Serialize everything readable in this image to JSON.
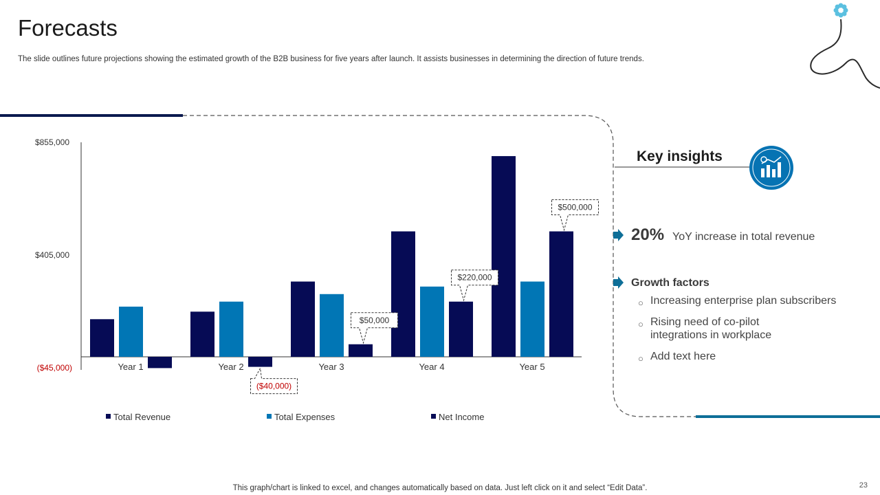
{
  "page": {
    "title": "Forecasts",
    "subtitle": "The slide outlines future projections showing the estimated growth of the B2B business for five years after launch. It assists businesses in determining the direction of future trends.",
    "footer_note": "This graph/chart is linked to excel, and changes automatically based on data. Just left click on it and select “Edit Data”.",
    "page_number": "23"
  },
  "insights": {
    "title": "Key insights",
    "icon": "bar-chart-growth-icon",
    "stat_value": "20%",
    "stat_label": "YoY increase in total revenue",
    "growth_title": "Growth factors",
    "factors": [
      "Increasing enterprise plan subscribers",
      "Rising need of co-pilot integrations in workplace",
      "Add text here"
    ]
  },
  "colors": {
    "revenue": "#060b55",
    "expenses": "#0176b5",
    "net_income": "#060b55",
    "negative_label": "#c00000",
    "accent_teal": "#0e6f98",
    "icon_circle": "#0673b3"
  },
  "chart_data": {
    "type": "bar",
    "categories": [
      "Year 1",
      "Year 2",
      "Year 3",
      "Year 4",
      "Year 5"
    ],
    "series": [
      {
        "name": "Total Revenue",
        "values": [
          150000,
          180000,
          300000,
          500000,
          800000
        ]
      },
      {
        "name": "Total Expenses",
        "values": [
          200000,
          220000,
          250000,
          280000,
          300000
        ]
      },
      {
        "name": "Net Income",
        "values": [
          -45000,
          -40000,
          50000,
          220000,
          500000
        ]
      }
    ],
    "y_ticks": [
      "$855,000",
      "$405,000",
      "($45,000)"
    ],
    "ylim": [
      -45000,
      855000
    ],
    "callouts": [
      {
        "label": "($40,000)",
        "category": "Year 2",
        "negative": true
      },
      {
        "label": "$50,000",
        "category": "Year 3",
        "negative": false
      },
      {
        "label": "$220,000",
        "category": "Year 4",
        "negative": false
      },
      {
        "label": "$500,000",
        "category": "Year 5",
        "negative": false
      }
    ],
    "legend_position": "bottom"
  }
}
